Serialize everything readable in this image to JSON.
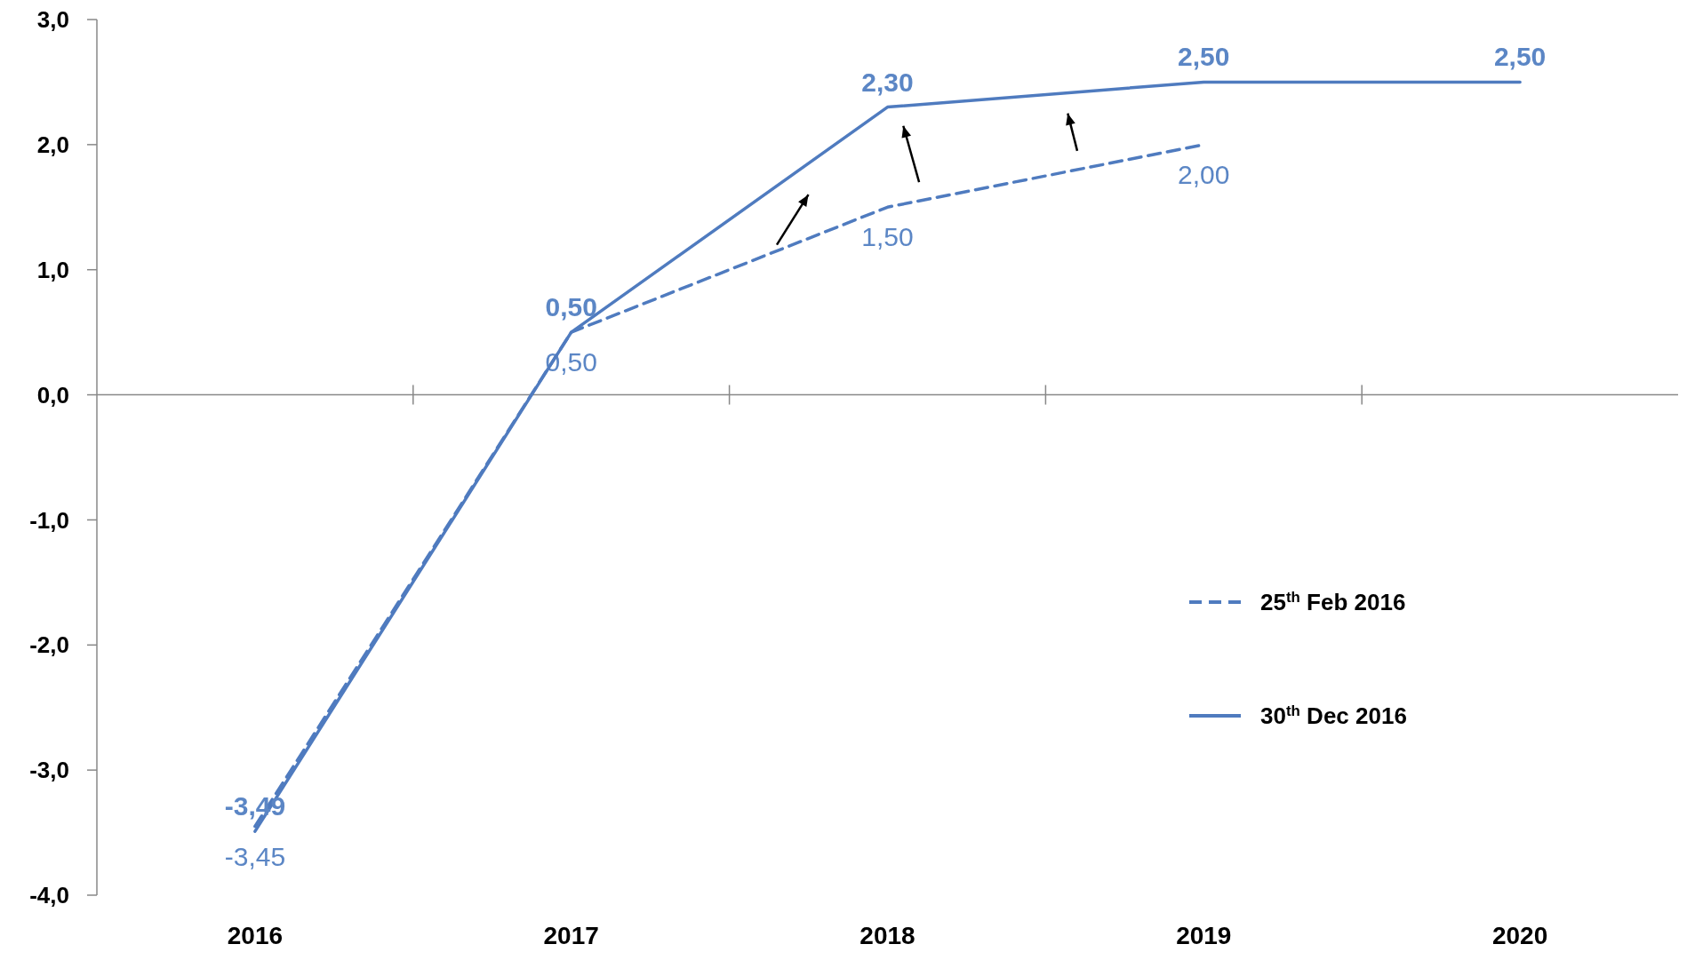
{
  "chart_data": {
    "type": "line",
    "categories": [
      "2016",
      "2017",
      "2018",
      "2019",
      "2020"
    ],
    "ylim": [
      -4,
      3
    ],
    "yticks": [
      {
        "value": 3,
        "label": "3,0"
      },
      {
        "value": 2,
        "label": "2,0"
      },
      {
        "value": 1,
        "label": "1,0"
      },
      {
        "value": 0,
        "label": "0,0"
      },
      {
        "value": -1,
        "label": "-1,0"
      },
      {
        "value": -2,
        "label": "-2,0"
      },
      {
        "value": -3,
        "label": "-3,0"
      },
      {
        "value": -4,
        "label": "-4,0"
      }
    ],
    "grid": false,
    "ref_lines": [
      {
        "axis": "y",
        "value": 0,
        "color": "#888888"
      }
    ],
    "legend": "bottom right",
    "marker": "none",
    "series": [
      {
        "name": "25$^{th}$ Feb 2016",
        "color": "#4f7bbf",
        "line_style": "dashed",
        "values": [
          -3.45,
          0.5,
          1.5,
          2.0,
          null
        ],
        "value_labels": [
          "-3,45",
          "0,50",
          "1,50",
          "2,00",
          null
        ]
      },
      {
        "name": "30$^{th}$ Dec 2016",
        "color": "#4f7bbf",
        "line_style": "solid",
        "values": [
          -3.49,
          0.5,
          2.3,
          2.5,
          2.5
        ],
        "value_labels": [
          "-3,49",
          "0,50",
          "2,30",
          "2,50",
          "2,50"
        ]
      }
    ]
  }
}
